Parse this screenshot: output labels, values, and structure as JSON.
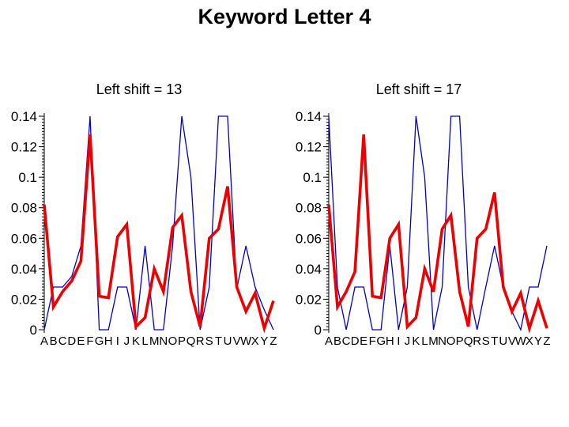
{
  "title": "Keyword Letter 4",
  "chart_data": [
    {
      "type": "line",
      "title": "Left shift = 13",
      "categories": [
        "A",
        "B",
        "C",
        "D",
        "E",
        "F",
        "G",
        "H",
        "I",
        "J",
        "K",
        "L",
        "M",
        "N",
        "O",
        "P",
        "Q",
        "R",
        "S",
        "T",
        "U",
        "V",
        "W",
        "X",
        "Y",
        "Z"
      ],
      "y_ticks": [
        "0",
        "0.02",
        "0.04",
        "0.06",
        "0.08",
        "0.1",
        "0.12",
        "0.14"
      ],
      "ylim": [
        0,
        0.14
      ],
      "grid": false,
      "series": [
        {
          "color": "#0000cc",
          "values": [
            0,
            0.028,
            0.028,
            0.035,
            0.055,
            0.14,
            0,
            0,
            0.028,
            0.028,
            0,
            0.055,
            0,
            0,
            0.055,
            0.14,
            0.1,
            0,
            0.028,
            0.14,
            0.14,
            0.027,
            0.055,
            0.028,
            0.013,
            0
          ]
        },
        {
          "color": "#ee0000",
          "values": [
            0.082,
            0.015,
            0.025,
            0.032,
            0.045,
            0.128,
            0.022,
            0.021,
            0.061,
            0.069,
            0.002,
            0.008,
            0.04,
            0.025,
            0.067,
            0.075,
            0.025,
            0.002,
            0.06,
            0.066,
            0.094,
            0.028,
            0.012,
            0.024,
            0.001,
            0.019
          ]
        }
      ]
    },
    {
      "type": "line",
      "title": "Left shift = 17",
      "categories": [
        "A",
        "B",
        "C",
        "D",
        "E",
        "F",
        "G",
        "H",
        "I",
        "J",
        "K",
        "L",
        "M",
        "N",
        "O",
        "P",
        "Q",
        "R",
        "S",
        "T",
        "U",
        "V",
        "W",
        "X",
        "Y",
        "Z"
      ],
      "y_ticks": [
        "0",
        "0.02",
        "0.04",
        "0.06",
        "0.08",
        "0.1",
        "0.12",
        "0.14"
      ],
      "ylim": [
        0,
        0.14
      ],
      "grid": false,
      "series": [
        {
          "color": "#0000cc",
          "values": [
            0.14,
            0.028,
            0,
            0.028,
            0.028,
            0,
            0,
            0.055,
            0,
            0.028,
            0.14,
            0.1,
            0,
            0.028,
            0.14,
            0.14,
            0.028,
            0,
            0.028,
            0.055,
            0.028,
            0.012,
            0,
            0.028,
            0.028,
            0.055
          ]
        },
        {
          "color": "#ee0000",
          "values": [
            0.082,
            0.015,
            0.025,
            0.038,
            0.128,
            0.022,
            0.021,
            0.06,
            0.069,
            0.002,
            0.008,
            0.04,
            0.025,
            0.066,
            0.075,
            0.025,
            0.002,
            0.06,
            0.066,
            0.09,
            0.028,
            0.012,
            0.024,
            0.001,
            0.019,
            0.001
          ]
        }
      ]
    }
  ]
}
